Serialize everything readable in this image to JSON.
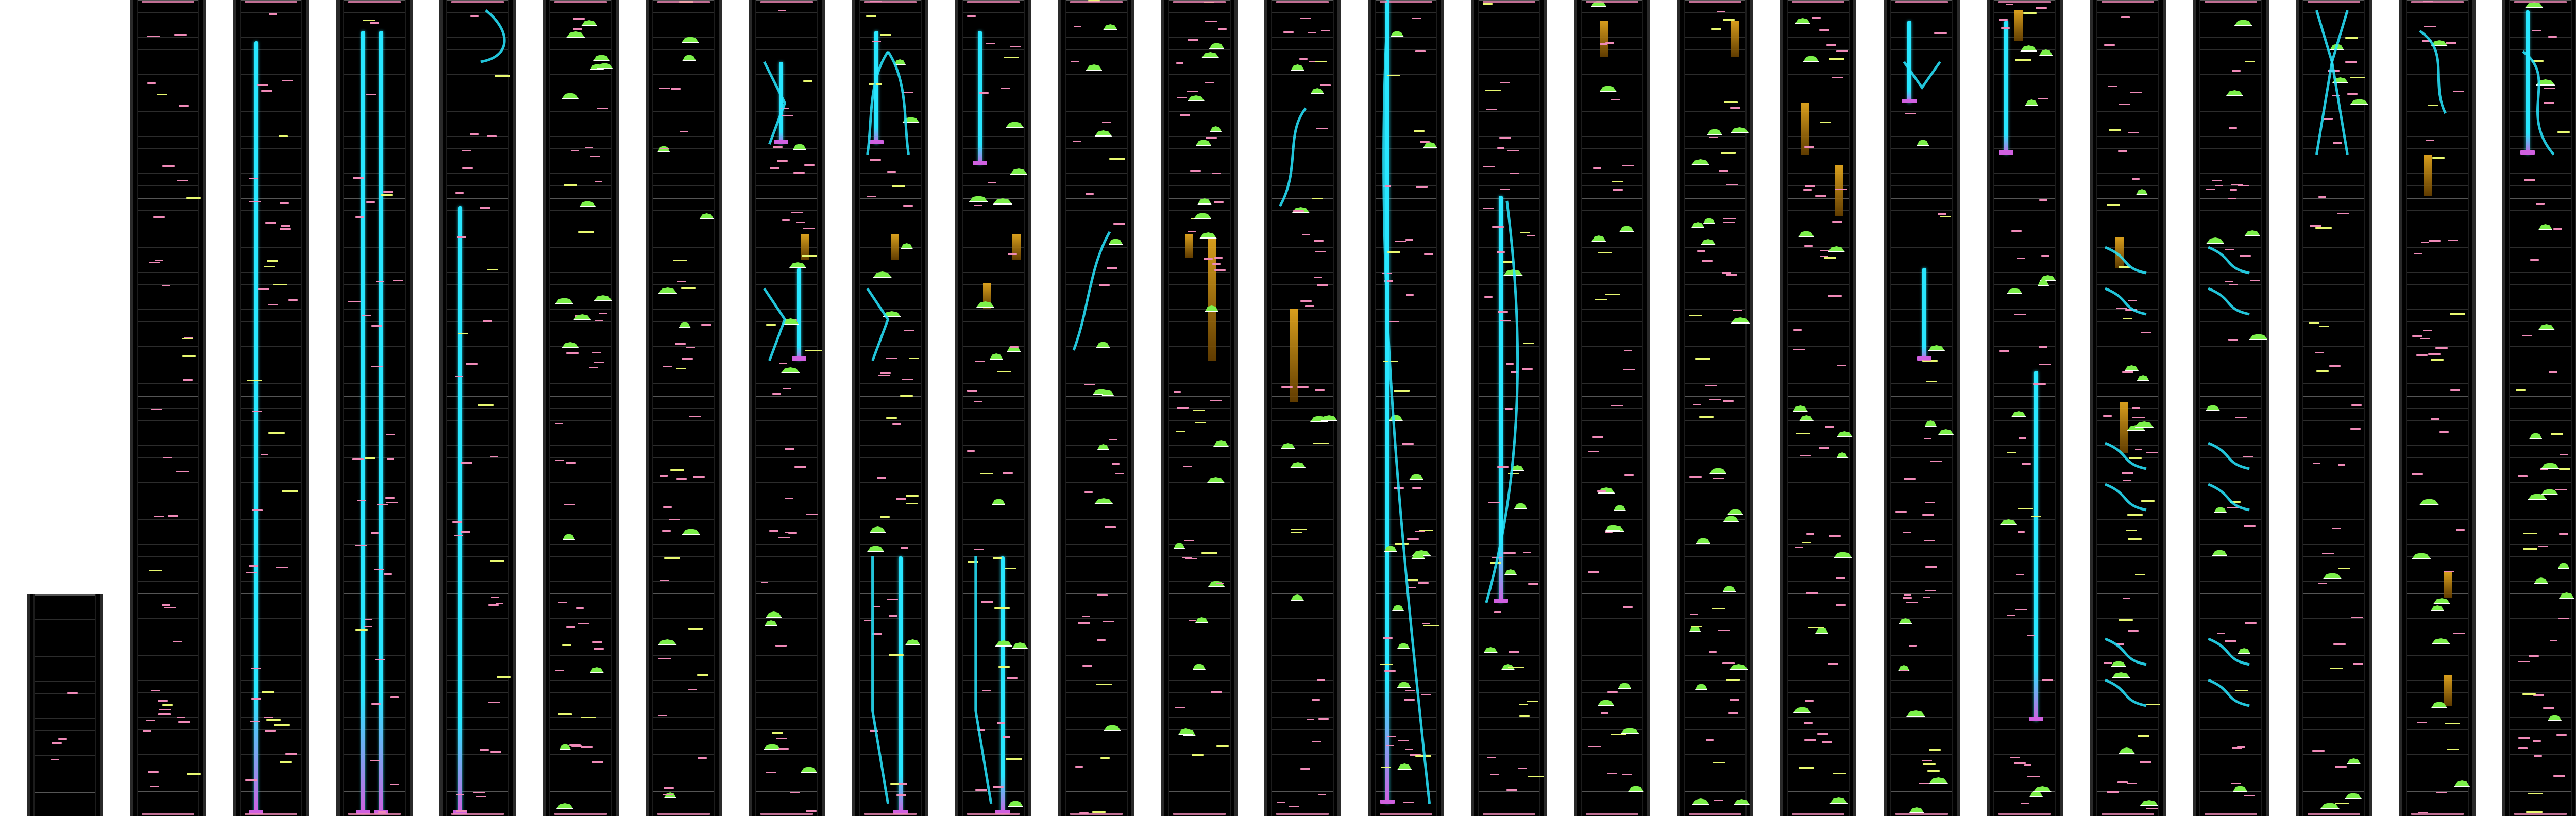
{
  "view": {
    "name": "chart-overview-columns",
    "background_color": "#ffffff",
    "lane_color": "#000000",
    "lane_count": 25
  },
  "colors": {
    "tap": "#f08ab8",
    "flick": "#7cf04a",
    "flick_outline": "#ffffff",
    "hold": "#28e6ff",
    "hold_end": "#d060e0",
    "critical": "#f0b020",
    "guide": "#e8f870",
    "line": "#a0e840"
  },
  "legend_icons": [
    "tap-note-icon",
    "flick-note-icon",
    "hold-note-icon",
    "critical-note-icon",
    "guide-line-icon"
  ]
}
